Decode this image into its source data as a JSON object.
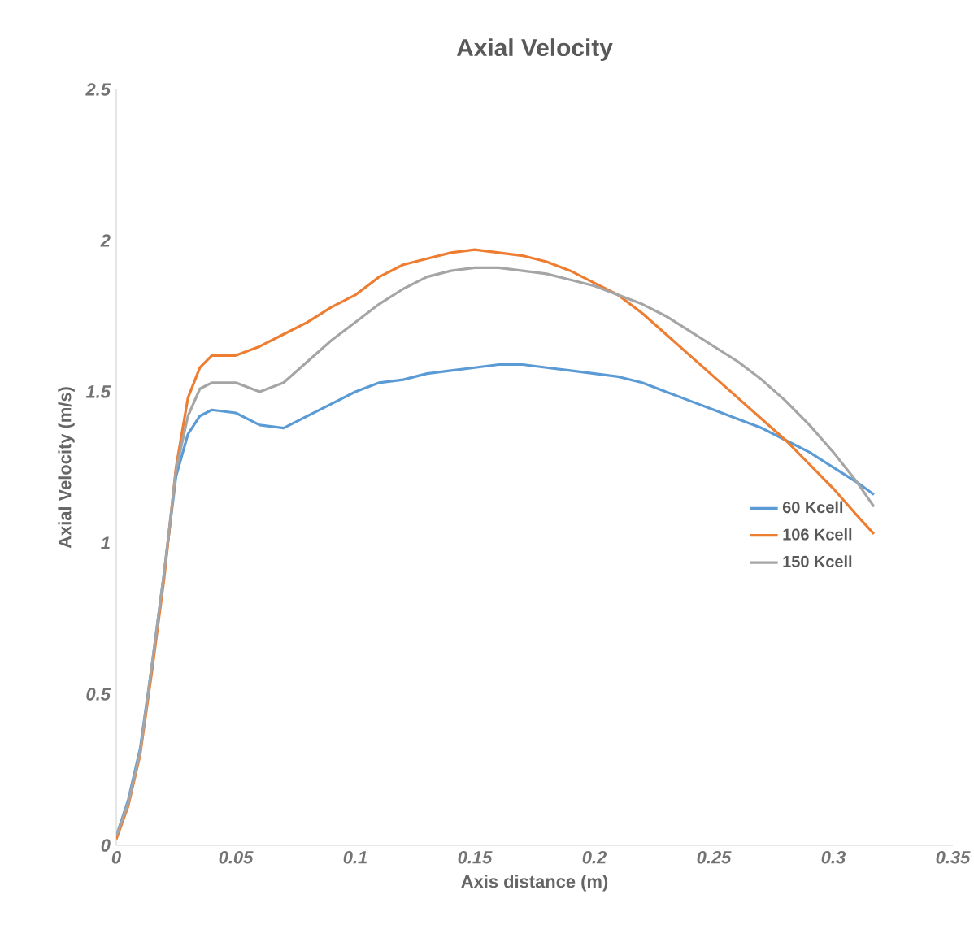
{
  "chart_data": {
    "type": "line",
    "title": "Axial Velocity",
    "xlabel": "Axis distance (m)",
    "ylabel": "Axial Velocity (m/s)",
    "x": [
      0,
      0.005,
      0.01,
      0.015,
      0.02,
      0.025,
      0.03,
      0.035,
      0.04,
      0.05,
      0.06,
      0.07,
      0.08,
      0.09,
      0.1,
      0.11,
      0.12,
      0.13,
      0.14,
      0.15,
      0.16,
      0.17,
      0.18,
      0.19,
      0.2,
      0.21,
      0.22,
      0.23,
      0.24,
      0.25,
      0.26,
      0.27,
      0.28,
      0.29,
      0.3,
      0.31,
      0.317
    ],
    "series": [
      {
        "name": "60 Kcell",
        "color": "#5b9bd5",
        "values": [
          0.03,
          0.15,
          0.32,
          0.6,
          0.9,
          1.22,
          1.36,
          1.42,
          1.44,
          1.43,
          1.39,
          1.38,
          1.42,
          1.46,
          1.5,
          1.53,
          1.54,
          1.56,
          1.57,
          1.58,
          1.59,
          1.59,
          1.58,
          1.57,
          1.56,
          1.55,
          1.53,
          1.5,
          1.47,
          1.44,
          1.41,
          1.38,
          1.34,
          1.3,
          1.25,
          1.2,
          1.16
        ]
      },
      {
        "name": "106 Kcell",
        "color": "#ed7d31",
        "values": [
          0.02,
          0.13,
          0.3,
          0.58,
          0.88,
          1.25,
          1.48,
          1.58,
          1.62,
          1.62,
          1.65,
          1.69,
          1.73,
          1.78,
          1.82,
          1.88,
          1.92,
          1.94,
          1.96,
          1.97,
          1.96,
          1.95,
          1.93,
          1.9,
          1.86,
          1.82,
          1.76,
          1.69,
          1.62,
          1.55,
          1.48,
          1.41,
          1.34,
          1.26,
          1.18,
          1.09,
          1.03
        ]
      },
      {
        "name": "150 Kcell",
        "color": "#a5a5a5",
        "values": [
          0.03,
          0.14,
          0.31,
          0.6,
          0.9,
          1.24,
          1.42,
          1.51,
          1.53,
          1.53,
          1.5,
          1.53,
          1.6,
          1.67,
          1.73,
          1.79,
          1.84,
          1.88,
          1.9,
          1.91,
          1.91,
          1.9,
          1.89,
          1.87,
          1.85,
          1.82,
          1.79,
          1.75,
          1.7,
          1.65,
          1.6,
          1.54,
          1.47,
          1.39,
          1.3,
          1.2,
          1.12
        ]
      }
    ],
    "xlim": [
      0,
      0.35
    ],
    "xticks": [
      0,
      0.05,
      0.1,
      0.15,
      0.2,
      0.25,
      0.3,
      0.35
    ],
    "ylim": [
      0,
      2.5
    ],
    "yticks": [
      0,
      0.5,
      1,
      1.5,
      2,
      2.5
    ],
    "legend": "right",
    "grid": false,
    "marker": "none",
    "line_style": "solid"
  }
}
